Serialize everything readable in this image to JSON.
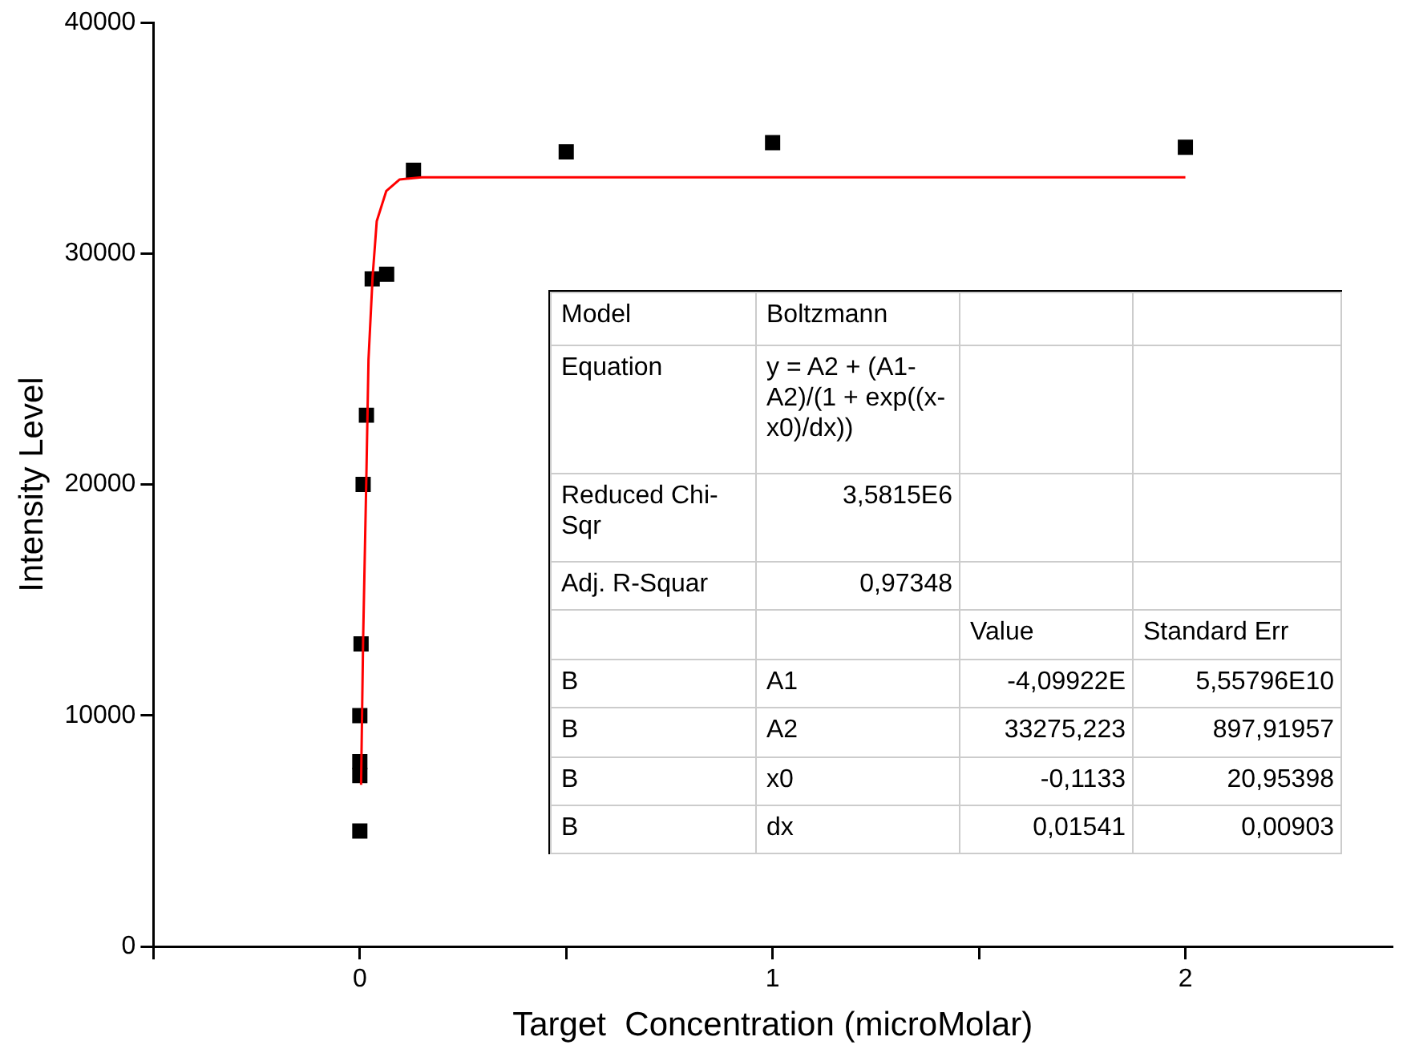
{
  "chart_data": {
    "type": "scatter",
    "xlabel": "Target  Concentration (microMolar)",
    "ylabel": "Intensity Level",
    "xlim": [
      -0.5,
      2.5
    ],
    "ylim": [
      0,
      40000
    ],
    "xticks": [
      {
        "value": -0.5,
        "label": null
      },
      0,
      {
        "value": 0.5,
        "label": null
      },
      1,
      {
        "value": 1.5,
        "label": null
      },
      2
    ],
    "yticks": [
      0,
      10000,
      20000,
      30000,
      40000
    ],
    "grid": false,
    "legend": false,
    "marker": "square",
    "series": [
      {
        "type": "scatter",
        "color": "#000000",
        "x": [
          0,
          0,
          0,
          0,
          0.003,
          0.008,
          0.016,
          0.03,
          0.065,
          0.13,
          0.5,
          1,
          2
        ],
        "values": [
          5000,
          7400,
          8000,
          10000,
          13100,
          20000,
          23000,
          28900,
          29100,
          33600,
          34400,
          34800,
          34600
        ]
      },
      {
        "type": "line",
        "color": "#ff0000",
        "line_style": "solid",
        "marker": "none",
        "x": [
          0.003,
          0.008,
          0.016,
          0.021,
          0.031,
          0.041,
          0.064,
          0.096,
          0.15,
          0.5,
          1,
          2
        ],
        "values": [
          7000,
          13300,
          20500,
          25400,
          29000,
          31400,
          32700,
          33200,
          33300,
          33300,
          33300,
          33300
        ]
      }
    ],
    "annotations": [
      "Model",
      "Boltzmann",
      "Equation",
      "y = A2 + (A1-A2)/(1 + exp((x-x0)/dx))",
      "Reduced Chi-Sqr",
      "3,5815E6",
      "Adj. R-Squar",
      "0,97348",
      "Value",
      "Standard Err",
      "B",
      "A1",
      "-4,09922E",
      "5,55796E10",
      "B",
      "A2",
      "33275,223",
      "897,91957",
      "B",
      "x0",
      "-0,1133",
      "20,95398",
      "B",
      "dx",
      "0,01541",
      "0,00903"
    ]
  }
}
